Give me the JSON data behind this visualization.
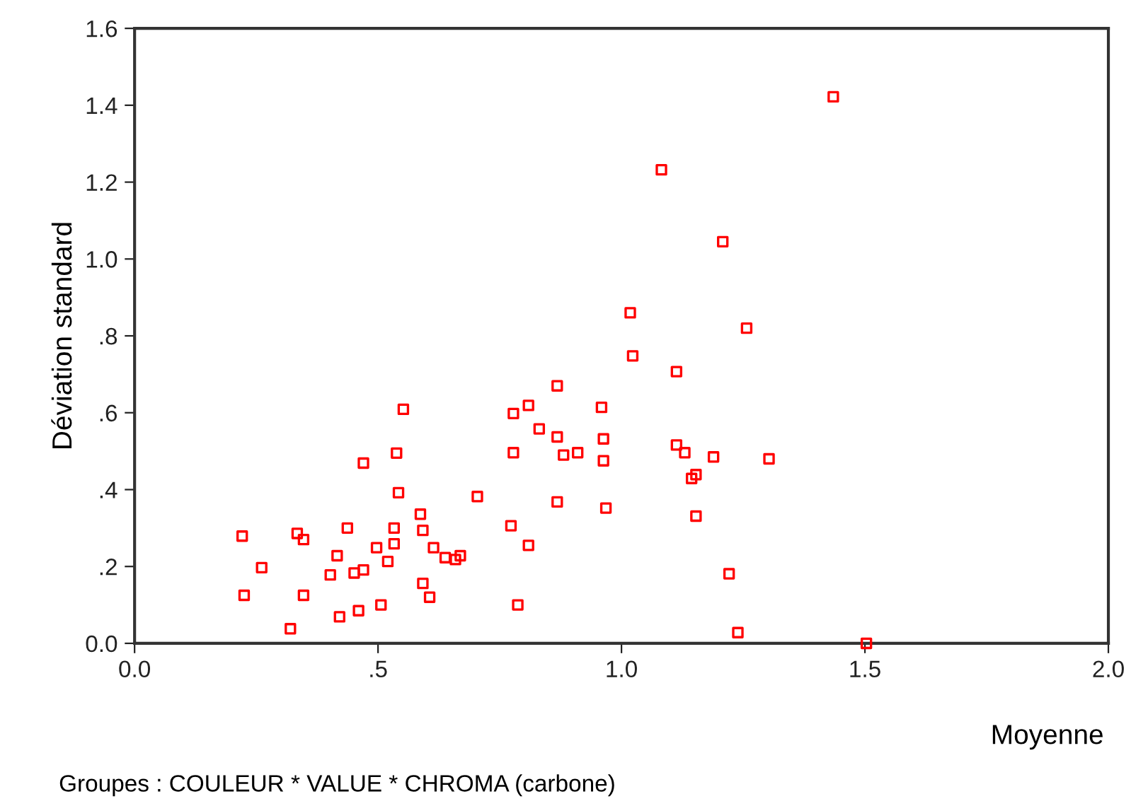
{
  "chart_data": {
    "type": "scatter",
    "xlabel": "Moyenne",
    "ylabel": "Déviation standard",
    "annotations": [
      "Groupes : COULEUR * VALUE * CHROMA (carbone)"
    ],
    "marker": "square",
    "grid": false,
    "legend": false,
    "xlim": [
      0,
      2
    ],
    "ylim": [
      0,
      1.6
    ],
    "xticks": [
      {
        "value": 0,
        "label": "0.0"
      },
      {
        "value": 0.5,
        "label": ".5"
      },
      {
        "value": 1,
        "label": "1.0"
      },
      {
        "value": 1.5,
        "label": "1.5"
      },
      {
        "value": 2,
        "label": "2.0"
      }
    ],
    "yticks": [
      {
        "value": 0,
        "label": "0.0"
      },
      {
        "value": 0.2,
        "label": ".2"
      },
      {
        "value": 0.4,
        "label": ".4"
      },
      {
        "value": 0.6,
        "label": ".6"
      },
      {
        "value": 0.8,
        "label": ".8"
      },
      {
        "value": 1,
        "label": "1.0"
      },
      {
        "value": 1.2,
        "label": "1.2"
      },
      {
        "value": 1.4,
        "label": "1.4"
      },
      {
        "value": 1.6,
        "label": "1.6"
      }
    ],
    "series": [
      {
        "color": "#ff0000",
        "x": [
          0.552,
          0.538,
          0.47,
          0.542,
          0.704,
          0.587,
          0.221,
          0.334,
          0.347,
          0.437,
          0.533,
          0.592,
          0.533,
          0.497,
          0.614,
          0.416,
          0.638,
          0.659,
          0.669,
          0.52,
          0.261,
          0.402,
          0.451,
          0.47,
          0.592,
          0.606,
          0.225,
          0.347,
          0.506,
          0.46,
          0.421,
          0.32,
          1.113,
          0.868,
          0.809,
          0.778,
          0.959,
          0.831,
          0.868,
          0.963,
          1.113,
          1.13,
          1.189,
          1.303,
          0.778,
          0.881,
          0.91,
          0.963,
          1.153,
          1.144,
          0.868,
          0.968,
          1.153,
          0.773,
          0.809,
          1.221,
          0.787,
          1.239,
          1.435,
          1.082,
          1.208,
          1.018,
          1.257,
          1.023,
          1.503
        ],
        "values": [
          0.609,
          0.495,
          0.469,
          0.392,
          0.382,
          0.336,
          0.279,
          0.286,
          0.27,
          0.3,
          0.3,
          0.294,
          0.259,
          0.249,
          0.249,
          0.228,
          0.223,
          0.218,
          0.228,
          0.213,
          0.197,
          0.178,
          0.183,
          0.191,
          0.156,
          0.12,
          0.125,
          0.125,
          0.1,
          0.085,
          0.069,
          0.038,
          0.707,
          0.67,
          0.619,
          0.598,
          0.614,
          0.558,
          0.537,
          0.532,
          0.516,
          0.496,
          0.485,
          0.48,
          0.496,
          0.49,
          0.496,
          0.475,
          0.439,
          0.429,
          0.368,
          0.352,
          0.331,
          0.306,
          0.255,
          0.181,
          0.1,
          0.028,
          1.422,
          1.232,
          1.045,
          0.86,
          0.82,
          0.748,
          0.0
        ]
      }
    ]
  }
}
